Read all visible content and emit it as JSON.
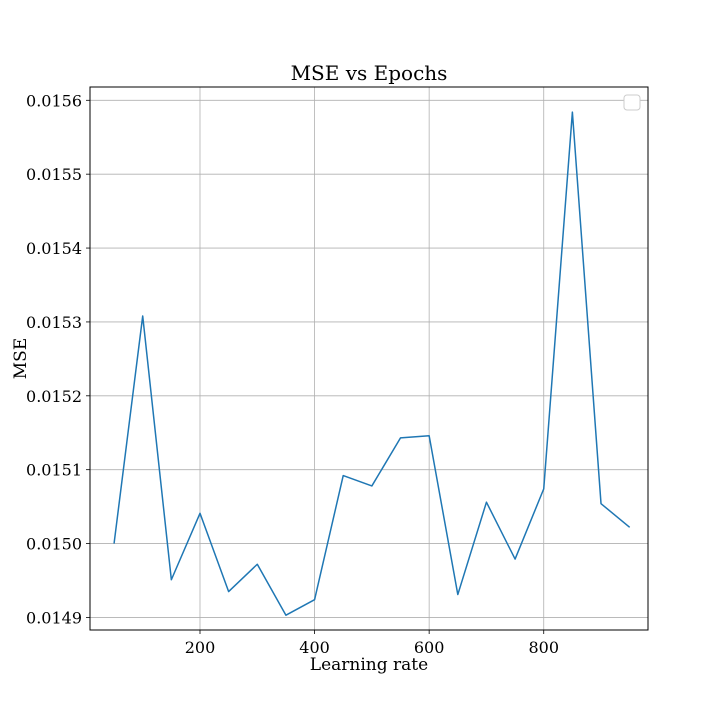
{
  "chart_data": {
    "type": "line",
    "title": "MSE vs Epochs",
    "xlabel": "Learning rate",
    "ylabel": "MSE",
    "xlim": [
      8,
      982
    ],
    "ylim": [
      0.014883,
      0.015618
    ],
    "x_ticks": [
      200,
      400,
      600,
      800
    ],
    "y_ticks": [
      0.0149,
      0.015,
      0.0151,
      0.0152,
      0.0153,
      0.0154,
      0.0155,
      0.0156
    ],
    "x_tick_labels": [
      "200",
      "400",
      "600",
      "800"
    ],
    "y_tick_labels": [
      "0.0149",
      "0.0150",
      "0.0151",
      "0.0152",
      "0.0153",
      "0.0154",
      "0.0155",
      "0.0156"
    ],
    "grid": true,
    "legend": "top-right",
    "series": [
      {
        "color": "#1f77b4",
        "x": [
          50,
          100,
          150,
          200,
          250,
          300,
          350,
          400,
          450,
          500,
          550,
          600,
          650,
          700,
          750,
          800,
          850,
          900,
          950
        ],
        "y": [
          0.015,
          0.015308,
          0.014951,
          0.015041,
          0.014935,
          0.014972,
          0.014903,
          0.014924,
          0.015092,
          0.015078,
          0.015143,
          0.015146,
          0.014931,
          0.015056,
          0.014979,
          0.015074,
          0.015584,
          0.015054,
          0.015022
        ]
      }
    ]
  }
}
